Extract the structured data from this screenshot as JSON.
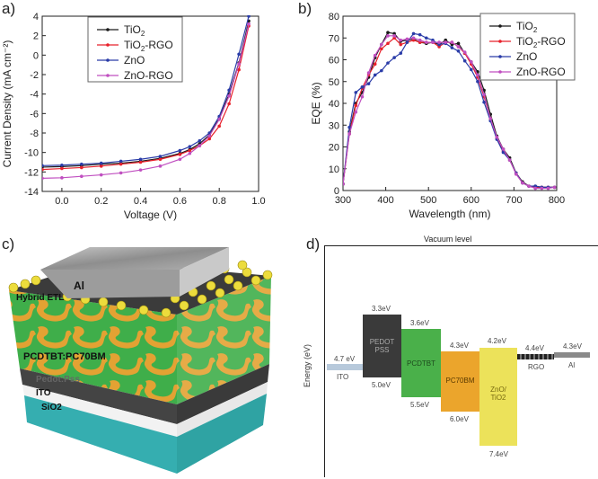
{
  "panel_labels": {
    "a": "a)",
    "b": "b)",
    "c": "c)",
    "d": "d)"
  },
  "colors": {
    "TiO2": "#1a1a1a",
    "TiO2-RGO": "#e8212b",
    "ZnO": "#2a3ca8",
    "ZnO-RGO": "#c04fc0"
  },
  "chart_data": [
    {
      "type": "line",
      "title": "",
      "xlabel": "Voltage (V)",
      "ylabel": "Current Density (mA cm⁻²)",
      "xlim": [
        -0.1,
        1.0
      ],
      "ylim": [
        -14,
        4
      ],
      "xticks": [
        "0.0",
        "0.2",
        "0.4",
        "0.6",
        "0.8",
        "1.0"
      ],
      "xtick_values": [
        0,
        0.2,
        0.4,
        0.6,
        0.8,
        1.0
      ],
      "yticks": [
        "4",
        "2",
        "0",
        "-2",
        "-4",
        "-6",
        "-8",
        "-10",
        "-12",
        "-14"
      ],
      "ytick_values": [
        4,
        2,
        0,
        -2,
        -4,
        -6,
        -8,
        -10,
        -12,
        -14
      ],
      "legend_position": "top-center",
      "x": [
        -0.1,
        0,
        0.1,
        0.2,
        0.3,
        0.4,
        0.5,
        0.6,
        0.65,
        0.7,
        0.75,
        0.8,
        0.85,
        0.9,
        0.95
      ],
      "series": [
        {
          "name": "TiO2",
          "label_main": "TiO",
          "label_sub": "2",
          "label_rest": "",
          "values": [
            -11.5,
            -11.45,
            -11.35,
            -11.2,
            -11.1,
            -10.9,
            -10.6,
            -10.1,
            -9.7,
            -9.1,
            -8.2,
            -6.5,
            -4,
            -0.8,
            3.5
          ]
        },
        {
          "name": "TiO2-RGO",
          "label_main": "TiO",
          "label_sub": "2",
          "label_rest": "-RGO",
          "values": [
            -11.75,
            -11.65,
            -11.55,
            -11.4,
            -11.2,
            -11.0,
            -10.7,
            -10.2,
            -9.8,
            -9.3,
            -8.6,
            -7.3,
            -5,
            -1.5,
            3
          ]
        },
        {
          "name": "ZnO",
          "label_main": "ZnO",
          "label_sub": "",
          "label_rest": "",
          "values": [
            -11.35,
            -11.3,
            -11.2,
            -11.1,
            -10.9,
            -10.7,
            -10.4,
            -9.8,
            -9.4,
            -8.8,
            -8.0,
            -6.3,
            -3.6,
            0.1,
            4
          ]
        },
        {
          "name": "ZnO-RGO",
          "label_main": "ZnO-RGO",
          "label_sub": "",
          "label_rest": "",
          "values": [
            -12.65,
            -12.6,
            -12.45,
            -12.3,
            -12.1,
            -11.8,
            -11.4,
            -10.7,
            -10.1,
            -9.3,
            -8.3,
            -6.6,
            -4.2,
            -0.9,
            3.2
          ]
        }
      ]
    },
    {
      "type": "line",
      "title": "",
      "xlabel": "Wavelength (nm)",
      "ylabel": "EQE (%)",
      "xlim": [
        300,
        800
      ],
      "ylim": [
        0,
        80
      ],
      "xticks": [
        "300",
        "400",
        "500",
        "600",
        "700",
        "800"
      ],
      "xtick_values": [
        300,
        400,
        500,
        600,
        700,
        800
      ],
      "yticks": [
        "80",
        "70",
        "60",
        "50",
        "40",
        "30",
        "20",
        "10",
        "0"
      ],
      "ytick_values": [
        80,
        70,
        60,
        50,
        40,
        30,
        20,
        10,
        0
      ],
      "legend_position": "top-right",
      "x": [
        300,
        315,
        330,
        345,
        360,
        375,
        390,
        405,
        420,
        435,
        450,
        465,
        480,
        495,
        510,
        525,
        540,
        555,
        570,
        585,
        600,
        615,
        630,
        645,
        660,
        675,
        690,
        705,
        720,
        735,
        750,
        765,
        780,
        795
      ],
      "series": [
        {
          "name": "TiO2",
          "label_main": "TiO",
          "label_sub": "2",
          "label_rest": "",
          "values": [
            3,
            27,
            40,
            45,
            52,
            61,
            67,
            72.5,
            72,
            68.5,
            69,
            69.5,
            68,
            67.5,
            68,
            67,
            69,
            67,
            67.5,
            63,
            59,
            54.5,
            46,
            35,
            25,
            19,
            15,
            8,
            4,
            2,
            2,
            1.5,
            1.5,
            1.5
          ]
        },
        {
          "name": "TiO2-RGO",
          "label_main": "TiO",
          "label_sub": "2",
          "label_rest": "-RGO",
          "values": [
            3,
            26,
            39,
            47,
            53,
            58,
            65,
            67.5,
            70,
            67,
            68,
            69,
            68,
            68,
            68,
            66,
            68,
            68,
            66,
            63,
            58,
            52,
            43,
            33,
            24,
            18,
            14,
            8,
            3.5,
            2,
            1.5,
            1.5,
            1.5,
            1.5
          ]
        },
        {
          "name": "ZnO",
          "label_main": "ZnO",
          "label_sub": "",
          "label_rest": "",
          "values": [
            3,
            29,
            45,
            47.5,
            49,
            53,
            55,
            58.5,
            61,
            63,
            68,
            72,
            71.5,
            70,
            69,
            67,
            67.5,
            65.5,
            64,
            59.5,
            55.5,
            50,
            40.5,
            32,
            23.5,
            17.5,
            14,
            8,
            3.5,
            2,
            2,
            1.5,
            1.5,
            1.5
          ]
        },
        {
          "name": "ZnO-RGO",
          "label_main": "ZnO-RGO",
          "label_sub": "",
          "label_rest": "",
          "values": [
            3,
            26,
            36,
            43,
            54,
            62,
            67,
            71,
            71,
            69,
            69.5,
            70,
            69,
            68,
            68,
            68,
            68,
            68,
            66,
            63.5,
            59,
            53,
            44,
            33,
            24.5,
            19,
            14,
            7.5,
            3.5,
            2,
            1,
            1,
            1,
            1.5
          ]
        }
      ]
    }
  ],
  "device": {
    "labels": {
      "al": "Al",
      "etl": "Hybrid ETL",
      "active": "PCDTBT:PC70BM",
      "pedot": "Pedot:Pss",
      "ito": "ITO",
      "sio2": "SiO2"
    }
  },
  "energy_diagram": {
    "vacuum_label": "Vacuum level",
    "ylabel": "Energy (eV)",
    "layers": [
      {
        "name": "ITO",
        "top": "4.7 eV",
        "color": "#b7c9db"
      },
      {
        "name": "PEDOT PSS",
        "line1": "PEDOT",
        "line2": "PSS",
        "top": "3.3eV",
        "bottom": "5.0eV",
        "color": "#3a3a3a"
      },
      {
        "name": "PCDTBT",
        "top": "3.6eV",
        "bottom": "5.5eV",
        "color": "#4ab04a"
      },
      {
        "name": "PC70BM",
        "line1": "PC70BM",
        "top": "4.3eV",
        "bottom": "6.0eV",
        "color": "#eba52c"
      },
      {
        "name": "ZnO/TiO2",
        "line1": "ZnO/",
        "line2": "TiO2",
        "top": "4.2eV",
        "bottom": "7.4eV",
        "color": "#ece25a"
      },
      {
        "name": "RGO",
        "top": "4.4eV",
        "color": "#333333"
      },
      {
        "name": "Al",
        "top": "4.3eV",
        "color": "#8a8a8a"
      }
    ]
  }
}
